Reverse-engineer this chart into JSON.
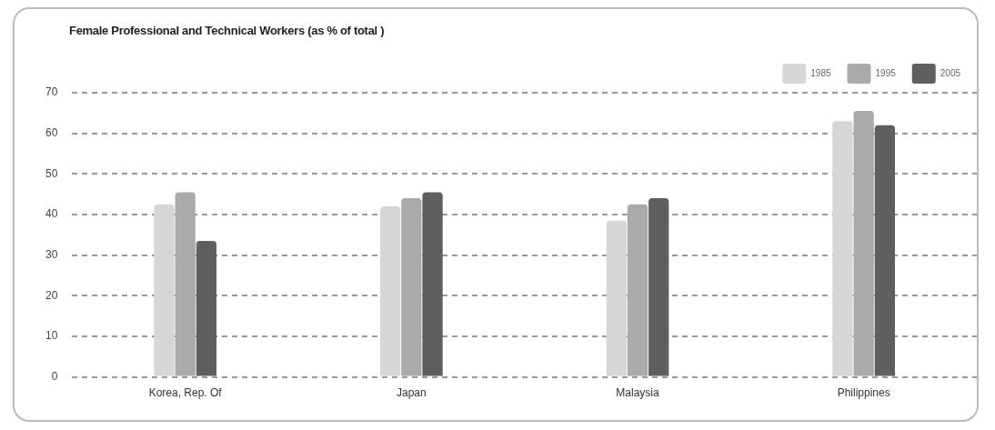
{
  "chart_data": {
    "type": "bar",
    "title": "Female Professional and Technical Workers (as % of total )",
    "categories": [
      "Korea, Rep. Of",
      "Japan",
      "Malaysia",
      "Philippines"
    ],
    "series": [
      {
        "name": "1985",
        "color": "#d6d6d6",
        "values": [
          42.5,
          42,
          38.5,
          63
        ]
      },
      {
        "name": "1995",
        "color": "#aaaaaa",
        "values": [
          45.5,
          44,
          42.5,
          65.5
        ]
      },
      {
        "name": "2005",
        "color": "#5f5f5f",
        "values": [
          33.5,
          45.5,
          44,
          62
        ]
      }
    ],
    "ylim": [
      0,
      70
    ],
    "yticks": [
      0,
      10,
      20,
      30,
      40,
      50,
      60,
      70
    ],
    "grid": "y",
    "legend": "top right"
  }
}
